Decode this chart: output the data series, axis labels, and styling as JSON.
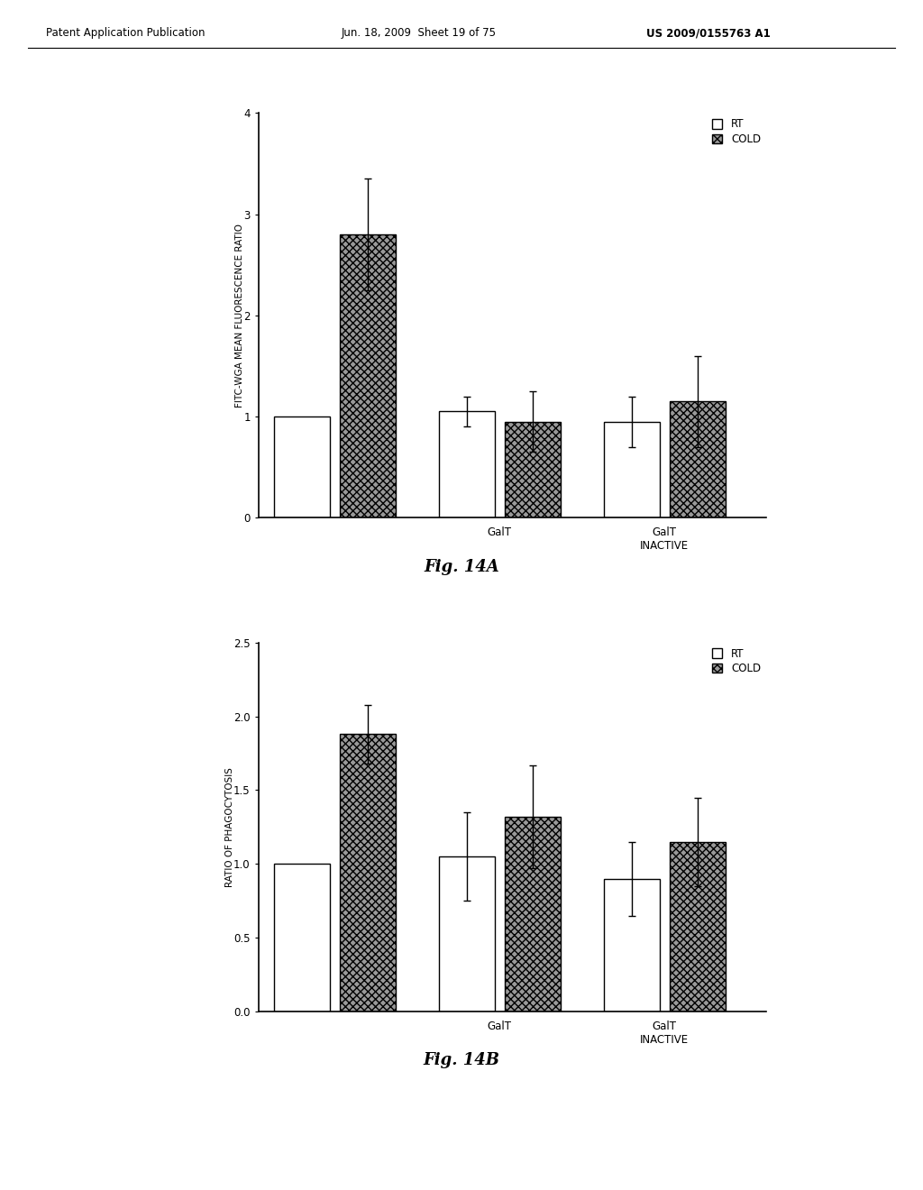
{
  "header_left": "Patent Application Publication",
  "header_mid": "Jun. 18, 2009  Sheet 19 of 75",
  "header_right": "US 2009/0155763 A1",
  "figA": {
    "title": "Fig. 14A",
    "ylabel": "FITC-WGA MEAN FLUORESCENCE RATIO",
    "ylim": [
      0,
      4
    ],
    "yticks": [
      0,
      1,
      2,
      3,
      4
    ],
    "groups": [
      "",
      "GalT",
      "GalT\nINACTIVE"
    ],
    "rt_values": [
      1.0,
      1.05,
      0.95
    ],
    "cold_values": [
      2.8,
      0.95,
      1.15
    ],
    "rt_errors": [
      0.0,
      0.15,
      0.25
    ],
    "cold_errors": [
      0.55,
      0.3,
      0.45
    ]
  },
  "figB": {
    "title": "Fig. 14B",
    "ylabel": "RATIO OF PHAGOCYTOSIS",
    "ylim": [
      0,
      2.5
    ],
    "yticks": [
      0,
      0.5,
      1.0,
      1.5,
      2.0,
      2.5
    ],
    "groups": [
      "",
      "GalT",
      "GalT\nINACTIVE"
    ],
    "rt_values": [
      1.0,
      1.05,
      0.9
    ],
    "cold_values": [
      1.88,
      1.32,
      1.15
    ],
    "rt_errors": [
      0.0,
      0.3,
      0.25
    ],
    "cold_errors": [
      0.2,
      0.35,
      0.3
    ]
  },
  "legend_rt_label": "RT",
  "legend_cold_label": "COLD",
  "rt_color": "white",
  "cold_color": "#999999",
  "bar_edge_color": "black",
  "bar_width": 0.22,
  "group_positions": [
    0.35,
    1.0,
    1.65
  ],
  "background_color": "white",
  "font_color": "black"
}
